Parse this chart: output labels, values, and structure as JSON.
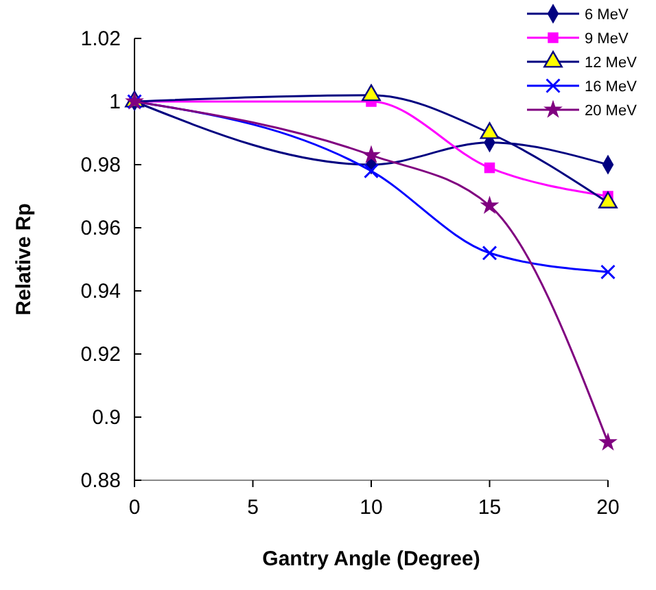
{
  "chart_data": {
    "type": "line",
    "xlabel": "Gantry Angle (Degree)",
    "ylabel": "Relative Rp",
    "x": [
      0,
      10,
      15,
      20
    ],
    "xlim": [
      0,
      20
    ],
    "xticks": [
      0,
      5,
      10,
      15,
      20
    ],
    "ylim": [
      0.88,
      1.02
    ],
    "yticks": [
      0.88,
      0.9,
      0.92,
      0.94,
      0.96,
      0.98,
      1,
      1.02
    ],
    "grid": false,
    "legend": "top right",
    "line_style": "solid",
    "series": [
      {
        "name": "6 MeV",
        "color": "#000080",
        "marker": "diamond",
        "values": [
          1,
          0.98,
          0.987,
          0.98
        ]
      },
      {
        "name": "9 MeV",
        "color": "#ff00ff",
        "marker": "square",
        "values": [
          1,
          1.0,
          0.979,
          0.97
        ]
      },
      {
        "name": "12 MeV",
        "color": "#000080",
        "marker": "triangle",
        "values": [
          1,
          1.002,
          0.99,
          0.968
        ]
      },
      {
        "name": "16 MeV",
        "color": "#0000ff",
        "marker": "cross",
        "values": [
          1,
          0.978,
          0.952,
          0.946
        ]
      },
      {
        "name": "20 MeV",
        "color": "#800080",
        "marker": "star",
        "values": [
          1,
          0.983,
          0.967,
          0.892
        ]
      }
    ]
  }
}
